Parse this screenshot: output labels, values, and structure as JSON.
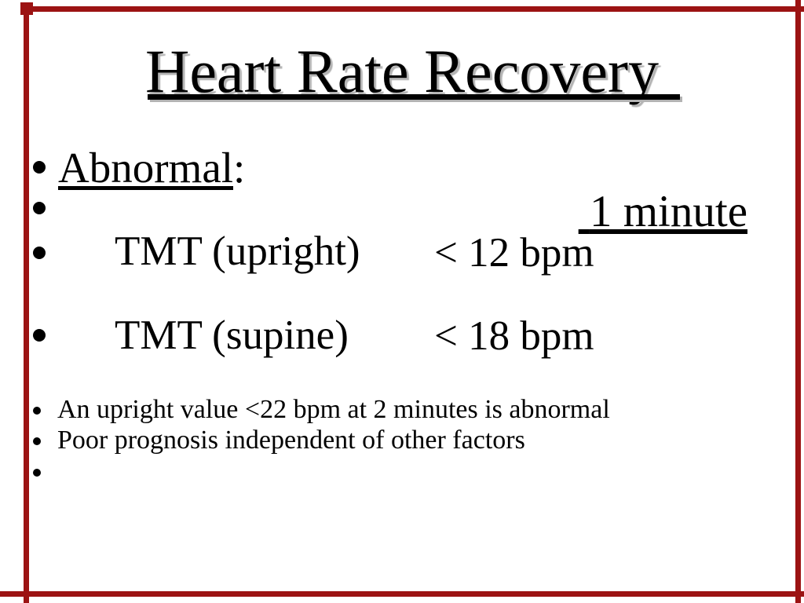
{
  "slide": {
    "title": "Heart Rate Recovery",
    "background_color": "#ffffff",
    "text_color": "#000000",
    "title_shadow_color": "#b3b3b3",
    "frame_border_color": "#9c1313"
  },
  "rows": {
    "abnormal_label": "Abnormal",
    "abnormal_suffix": ":",
    "minute_header": "1 minute",
    "tmt_upright_label": "TMT (upright)",
    "tmt_upright_value": "< 12 bpm",
    "tmt_supine_label": "TMT (supine)",
    "tmt_supine_value": "< 18 bpm",
    "note_1": "An upright value <22 bpm at 2 minutes is abnormal",
    "note_2": "Poor prognosis independent of other factors"
  }
}
